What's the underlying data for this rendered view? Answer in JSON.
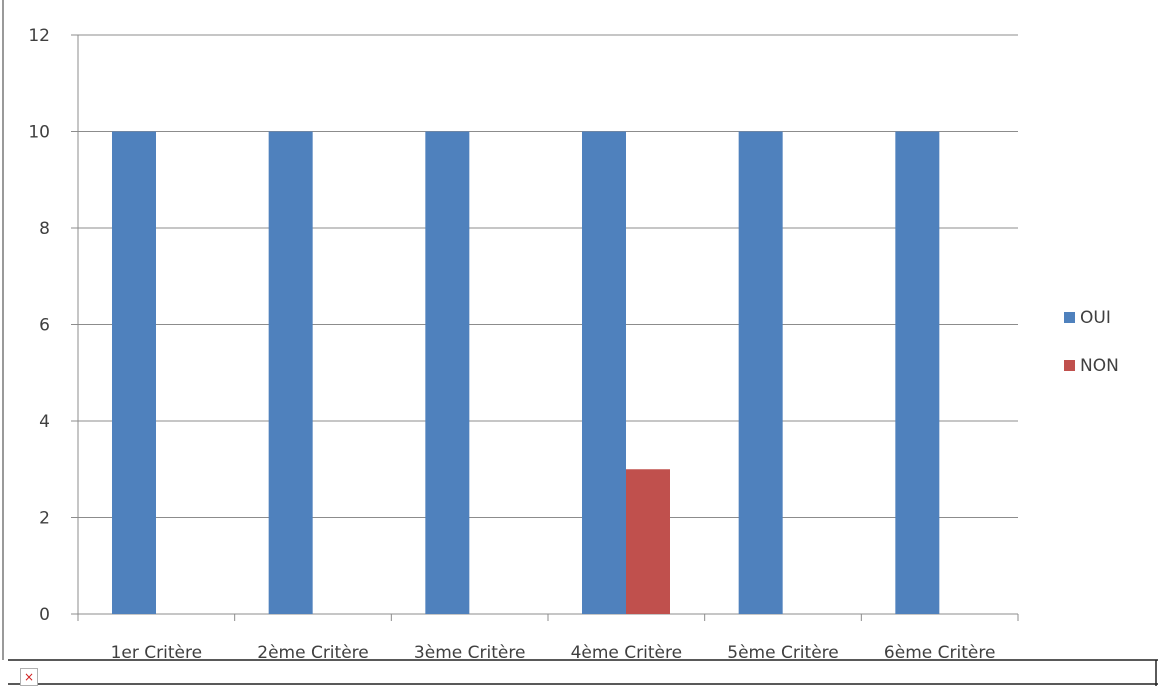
{
  "chart_data": {
    "type": "bar",
    "categories": [
      "1er Critère",
      "2ème Critère",
      "3ème Critère",
      "4ème Critère",
      "5ème Critère",
      "6ème Critère"
    ],
    "series": [
      {
        "name": "OUI",
        "values": [
          10,
          10,
          10,
          10,
          10,
          10
        ],
        "color": "#4f81bd"
      },
      {
        "name": "NON",
        "values": [
          0,
          0,
          0,
          3,
          0,
          0
        ],
        "color": "#c0504d"
      }
    ],
    "yticks": [
      0,
      2,
      4,
      6,
      8,
      10,
      12
    ],
    "ylim": [
      0,
      12
    ],
    "grid": true,
    "legend_position": "right",
    "title": "",
    "xlabel": "",
    "ylabel": ""
  },
  "icons": {
    "broken_image": "broken-image-icon"
  }
}
